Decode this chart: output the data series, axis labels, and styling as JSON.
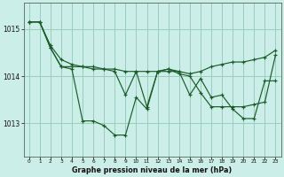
{
  "xlabel": "Graphe pression niveau de la mer (hPa)",
  "background_color": "#cceee8",
  "grid_color": "#99ccbb",
  "line_color": "#1a5c28",
  "ylim": [
    1012.3,
    1015.55
  ],
  "yticks": [
    1013,
    1014,
    1015
  ],
  "line1_y": [
    1015.15,
    1015.15,
    1014.6,
    1014.2,
    1014.15,
    1013.05,
    1013.05,
    1012.95,
    1012.75,
    1012.75,
    1013.55,
    1013.3,
    1014.1,
    1014.15,
    1014.1,
    1013.6,
    1013.95,
    1013.55,
    1013.6,
    1013.3,
    1013.1,
    1013.1,
    1013.9,
    1013.9
  ],
  "line2_y": [
    1015.15,
    1015.15,
    1014.6,
    1014.2,
    1014.2,
    1014.2,
    1014.15,
    1014.15,
    1014.1,
    1013.6,
    1014.1,
    1013.35,
    1014.1,
    1014.15,
    1014.05,
    1014.0,
    1013.65,
    1013.35,
    1013.35,
    1013.35,
    1013.35,
    1013.4,
    1013.45,
    1014.45
  ],
  "line3_y": [
    1015.15,
    1015.15,
    1014.65,
    1014.35,
    1014.25,
    1014.2,
    1014.2,
    1014.15,
    1014.15,
    1014.1,
    1014.1,
    1014.1,
    1014.1,
    1014.1,
    1014.1,
    1014.05,
    1014.1,
    1014.2,
    1014.25,
    1014.3,
    1014.3,
    1014.35,
    1014.4,
    1014.55
  ]
}
